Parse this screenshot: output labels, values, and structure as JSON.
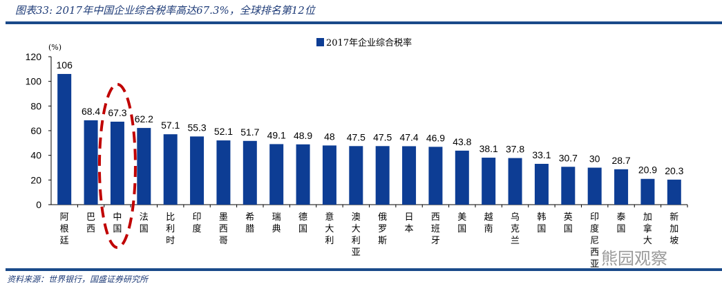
{
  "header": {
    "title": "图表33: 2017年中国企业综合税率高达67.3%，全球排名第12位"
  },
  "footer": {
    "source": "资料来源：世界银行，国盛证券研究所",
    "watermark": "熊园观察"
  },
  "colors": {
    "bar": "#0d3d94",
    "highlight": "#c00000"
  },
  "chart_data": {
    "type": "bar",
    "title": "",
    "ylabel": "(%)",
    "xlabel": "",
    "ylim": [
      0,
      120
    ],
    "yticks": [
      0,
      20,
      40,
      60,
      80,
      100,
      120
    ],
    "legend": {
      "position": "top-center",
      "entries": [
        "2017年企业综合税率"
      ]
    },
    "highlight": "中国",
    "categories": [
      "阿根廷",
      "巴西",
      "中国",
      "法国",
      "比利时",
      "印度",
      "墨西哥",
      "希腊",
      "瑞典",
      "德国",
      "意大利",
      "澳大利亚",
      "俄罗斯",
      "日本",
      "西班牙",
      "美国",
      "越南",
      "乌克兰",
      "韩国",
      "英国",
      "印度尼西亚",
      "泰国",
      "加拿大",
      "新加坡"
    ],
    "series": [
      {
        "name": "2017年企业综合税率",
        "values": [
          106,
          68.4,
          67.3,
          62.2,
          57.1,
          55.3,
          52.1,
          51.7,
          49.1,
          48.9,
          48,
          47.5,
          47.5,
          47.4,
          46.9,
          43.8,
          38.1,
          37.8,
          33.1,
          30.7,
          30,
          28.7,
          20.9,
          20.3
        ]
      }
    ]
  }
}
